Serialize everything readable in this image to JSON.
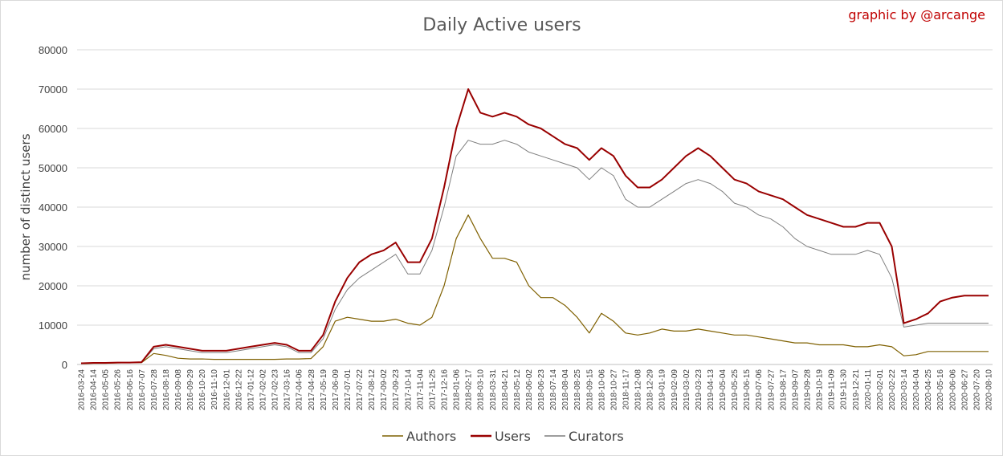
{
  "credit": "graphic by @arcange",
  "chart_data": {
    "type": "line",
    "title": "Daily Active users",
    "xlabel": "",
    "ylabel": "number of distinct users",
    "ylim": [
      0,
      80000
    ],
    "yticks": [
      0,
      10000,
      20000,
      30000,
      40000,
      50000,
      60000,
      70000,
      80000
    ],
    "grid": true,
    "legend_position": "bottom",
    "x_tick_labels": [
      "2016-03-24",
      "2016-04-14",
      "2016-05-05",
      "2016-05-26",
      "2016-06-16",
      "2016-07-07",
      "2016-07-28",
      "2016-08-18",
      "2016-09-08",
      "2016-09-29",
      "2016-10-20",
      "2016-11-10",
      "2016-12-01",
      "2016-12-22",
      "2017-01-12",
      "2017-02-02",
      "2017-02-23",
      "2017-03-16",
      "2017-04-06",
      "2017-04-28",
      "2017-05-19",
      "2017-06-09",
      "2017-07-01",
      "2017-07-22",
      "2017-08-12",
      "2017-09-02",
      "2017-09-23",
      "2017-10-14",
      "2017-11-04",
      "2017-11-25",
      "2017-12-16",
      "2018-01-06",
      "2018-02-17",
      "2018-03-10",
      "2018-03-31",
      "2018-04-21",
      "2018-05-12",
      "2018-06-02",
      "2018-06-23",
      "2018-07-14",
      "2018-08-04",
      "2018-08-25",
      "2018-09-15",
      "2018-10-06",
      "2018-10-27",
      "2018-11-17",
      "2018-12-08",
      "2018-12-29",
      "2019-01-19",
      "2019-02-09",
      "2019-03-02",
      "2019-03-23",
      "2019-04-13",
      "2019-05-04",
      "2019-05-25",
      "2019-06-15",
      "2019-07-06",
      "2019-07-27",
      "2019-08-17",
      "2019-09-07",
      "2019-09-28",
      "2019-10-19",
      "2019-11-09",
      "2019-11-30",
      "2019-12-21",
      "2020-01-11",
      "2020-02-01",
      "2020-02-22",
      "2020-03-14",
      "2020-04-04",
      "2020-04-25",
      "2020-05-16",
      "2020-06-06",
      "2020-06-27",
      "2020-07-20",
      "2020-08-10"
    ],
    "series": [
      {
        "name": "Authors",
        "color": "#7f6000",
        "values": [
          200,
          300,
          300,
          400,
          500,
          500,
          2800,
          2300,
          1600,
          1400,
          1400,
          1300,
          1300,
          1300,
          1300,
          1300,
          1300,
          1400,
          1400,
          1500,
          4500,
          11000,
          12000,
          11500,
          11000,
          11000,
          11500,
          10500,
          10000,
          12000,
          20000,
          32000,
          38000,
          32000,
          27000,
          27000,
          26000,
          20000,
          17000,
          17000,
          15000,
          12000,
          8000,
          13000,
          11000,
          8000,
          7500,
          8000,
          9000,
          8500,
          8500,
          9000,
          8500,
          8000,
          7500,
          7500,
          7000,
          6500,
          6000,
          5500,
          5500,
          5000,
          5000,
          5000,
          4500,
          4500,
          5000,
          4500,
          2200,
          2500,
          3300,
          3300,
          3300,
          3300,
          3300,
          3300
        ]
      },
      {
        "name": "Users",
        "color": "#990000",
        "values": [
          300,
          400,
          400,
          500,
          500,
          600,
          4500,
          5000,
          4500,
          4000,
          3500,
          3500,
          3500,
          4000,
          4500,
          5000,
          5500,
          5000,
          3500,
          3500,
          7500,
          16000,
          22000,
          26000,
          28000,
          29000,
          31000,
          26000,
          26000,
          32000,
          45000,
          60000,
          70000,
          64000,
          63000,
          64000,
          63000,
          61000,
          60000,
          58000,
          56000,
          55000,
          52000,
          55000,
          53000,
          48000,
          45000,
          45000,
          47000,
          50000,
          53000,
          55000,
          53000,
          50000,
          47000,
          46000,
          44000,
          43000,
          42000,
          40000,
          38000,
          37000,
          36000,
          35000,
          35000,
          36000,
          36000,
          30000,
          10500,
          11500,
          13000,
          16000,
          17000,
          17500,
          17500,
          17500
        ]
      },
      {
        "name": "Curators",
        "color": "#7f7f7f",
        "values": [
          250,
          350,
          350,
          450,
          450,
          500,
          4000,
          4500,
          4000,
          3500,
          3000,
          3000,
          3000,
          3500,
          4000,
          4500,
          5000,
          4500,
          3000,
          3000,
          6500,
          14000,
          19000,
          22000,
          24000,
          26000,
          28000,
          23000,
          23000,
          29000,
          40000,
          53000,
          57000,
          56000,
          56000,
          57000,
          56000,
          54000,
          53000,
          52000,
          51000,
          50000,
          47000,
          50000,
          48000,
          42000,
          40000,
          40000,
          42000,
          44000,
          46000,
          47000,
          46000,
          44000,
          41000,
          40000,
          38000,
          37000,
          35000,
          32000,
          30000,
          29000,
          28000,
          28000,
          28000,
          29000,
          28000,
          22000,
          9500,
          10000,
          10500,
          10500,
          10500,
          10500,
          10500,
          10500
        ]
      }
    ]
  }
}
